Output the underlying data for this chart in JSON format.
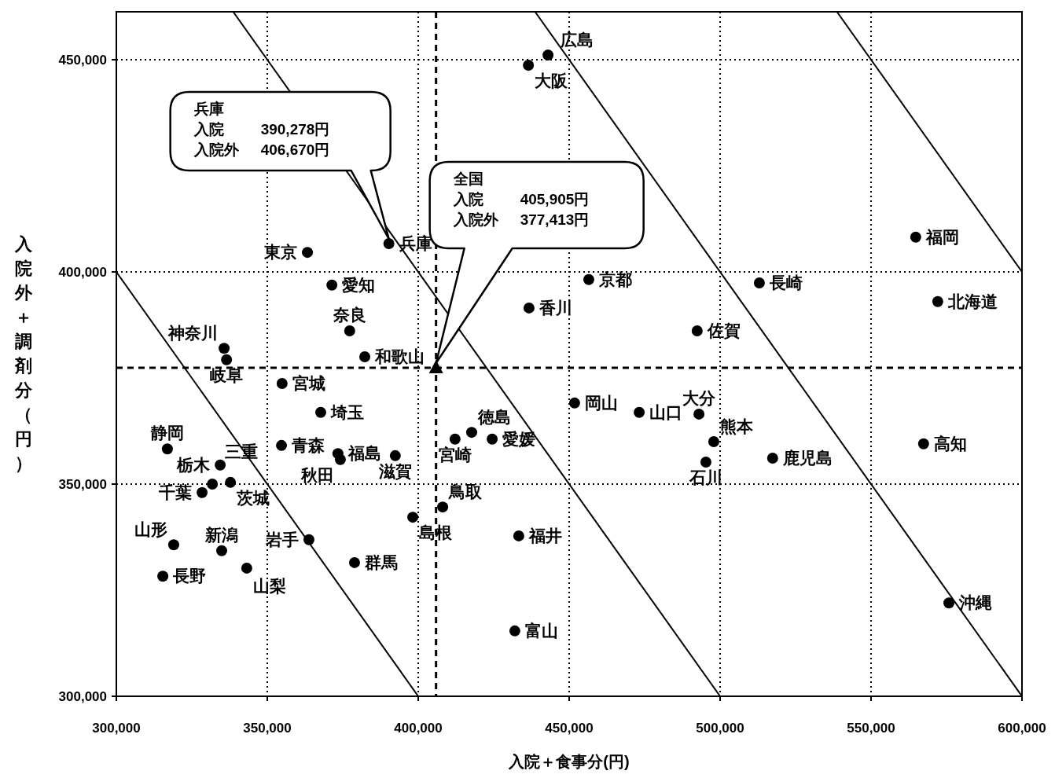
{
  "chart_data": {
    "type": "scatter",
    "xlabel": "入院＋食事分(円)",
    "ylabel": "入院外＋調剤分（円）",
    "xlim": [
      300000,
      600000
    ],
    "ylim": [
      300000,
      461300
    ],
    "xticks": [
      {
        "value": 300000,
        "label": "300,000"
      },
      {
        "value": 350000,
        "label": "350,000"
      },
      {
        "value": 400000,
        "label": "400,000"
      },
      {
        "value": 450000,
        "label": "450,000"
      },
      {
        "value": 500000,
        "label": "500,000"
      },
      {
        "value": 550000,
        "label": "550,000"
      },
      {
        "value": 600000,
        "label": "600,000"
      }
    ],
    "yticks": [
      {
        "value": 300000,
        "label": "300,000"
      },
      {
        "value": 350000,
        "label": "350,000"
      },
      {
        "value": 400000,
        "label": "400,000"
      },
      {
        "value": 450000,
        "label": "450,000"
      }
    ],
    "grid": true,
    "series": [
      {
        "type": "scatter",
        "marker": "circle",
        "color": "#000000",
        "x": [
          572100,
          354700,
          363800,
          354900,
          374200,
          319000,
          373400,
          337800,
          334400,
          378900,
          367700,
          328400,
          363300,
          335700,
          334900,
          432000,
          495300,
          433300,
          343200,
          315400,
          336500,
          316900,
          371400,
          331800,
          392400,
          456500,
          436500,
          390278,
          377300,
          382300,
          408100,
          398200,
          451800,
          443000,
          473200,
          417700,
          436700,
          424500,
          567400,
          564800,
          492400,
          513000,
          497900,
          493000,
          412200,
          517400,
          575800
        ],
        "values": [
          393000,
          359100,
          336900,
          373700,
          355800,
          335700,
          357200,
          350400,
          354500,
          331500,
          366900,
          348000,
          404600,
          382000,
          334300,
          315400,
          355200,
          337800,
          330200,
          328300,
          379300,
          358300,
          396900,
          350000,
          356700,
          398200,
          448700,
          406670,
          386100,
          380000,
          344600,
          342200,
          369100,
          451100,
          366900,
          362200,
          391500,
          360600,
          359500,
          408200,
          386100,
          397400,
          360000,
          366500,
          360600,
          356100,
          322000
        ],
        "value_labels": [
          "北海道",
          "青森",
          "岩手",
          "宮城",
          "秋田",
          "山形",
          "福島",
          "茨城",
          "栃木",
          "群馬",
          "埼玉",
          "千葉",
          "東京",
          "神奈川",
          "新潟",
          "富山",
          "石川",
          "福井",
          "山梨",
          "長野",
          "岐阜",
          "静岡",
          "愛知",
          "三重",
          "滋賀",
          "京都",
          "大阪",
          "兵庫",
          "奈良",
          "和歌山",
          "鳥取",
          "島根",
          "岡山",
          "広島",
          "山口",
          "徳島",
          "香川",
          "愛媛",
          "高知",
          "福岡",
          "佐賀",
          "長崎",
          "熊本",
          "大分",
          "宮崎",
          "鹿児島",
          "沖縄"
        ]
      },
      {
        "type": "scatter",
        "marker": "triangle",
        "color": "#000000",
        "x": [
          405905
        ],
        "values": [
          377413
        ]
      },
      {
        "type": "line",
        "line_style": "solid",
        "color": "#000000",
        "x": [
          300000,
          400000
        ],
        "values": [
          400000,
          300000
        ]
      },
      {
        "type": "line",
        "line_style": "solid",
        "color": "#000000",
        "x": [
          338700,
          500000
        ],
        "values": [
          461300,
          300000
        ]
      },
      {
        "type": "line",
        "line_style": "solid",
        "color": "#000000",
        "x": [
          438700,
          600000
        ],
        "values": [
          461300,
          300000
        ]
      },
      {
        "type": "line",
        "line_style": "solid",
        "color": "#000000",
        "x": [
          538700,
          600000
        ],
        "values": [
          461300,
          400000
        ]
      }
    ],
    "ref_lines": [
      {
        "axis": "x",
        "value": 405905,
        "line_style": "dashed",
        "color": "#000000"
      },
      {
        "axis": "y",
        "value": 377413,
        "line_style": "dashed",
        "color": "#000000"
      }
    ],
    "annotations": [
      "兵庫",
      "入院 390,278円",
      "入院外 406,670円",
      "全国",
      "入院 405,905円",
      "入院外 377,413円"
    ]
  }
}
